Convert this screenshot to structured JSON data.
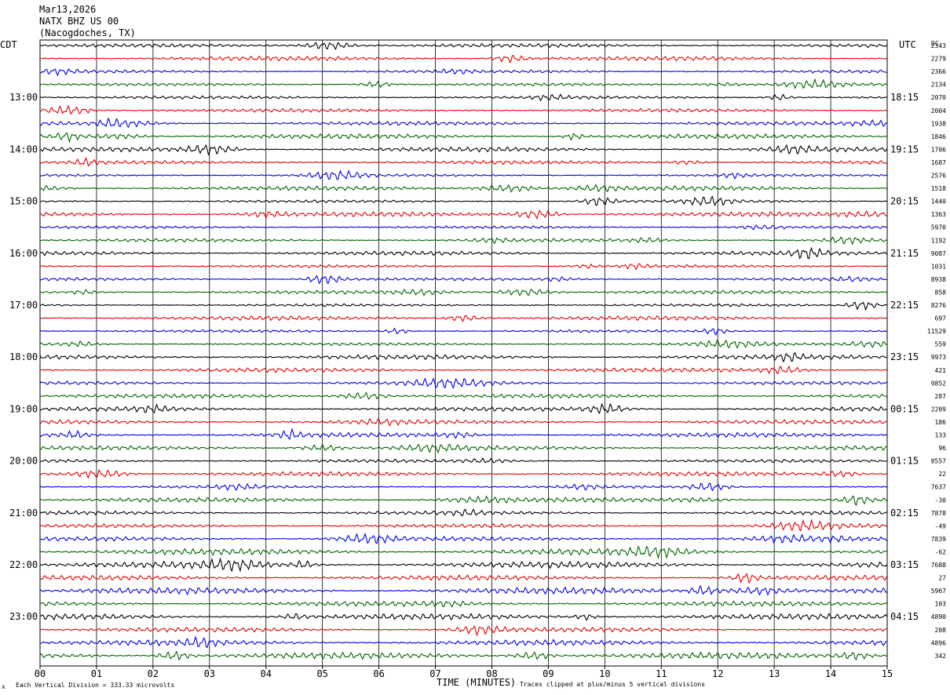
{
  "header": {
    "date": "Mar13,2026",
    "station": "NATX BHZ US 00",
    "location": "(Nacogdoches, TX)"
  },
  "left_label": "CDT",
  "right_label": "UTC",
  "dc_label": "DC",
  "footer": {
    "scale_note": "Each Vertical Division =  333.33 microvolts",
    "clip_note": "Traces clipped at plus/minus 5 vertical divisions",
    "mark": "x"
  },
  "colors": {
    "palette": [
      "#000000",
      "#e60000",
      "#0000e6",
      "#006400"
    ],
    "grid": "#000000"
  },
  "chart_data": {
    "type": "line",
    "title": "Mar13,2026 NATX BHZ US 00 (Nacogdoches, TX)",
    "xlabel": "TIME (MINUTES)",
    "ylabel": "",
    "x_ticks": [
      "00",
      "01",
      "02",
      "03",
      "04",
      "05",
      "06",
      "07",
      "08",
      "09",
      "10",
      "11",
      "12",
      "13",
      "14",
      "15"
    ],
    "xlim": [
      0,
      15
    ],
    "grid": true,
    "traces_per_hour": 4,
    "trace_count": 48,
    "left_time_labels": [
      "13:00",
      "14:00",
      "15:00",
      "16:00",
      "17:00",
      "18:00",
      "19:00",
      "20:00",
      "21:00",
      "22:00",
      "23:00"
    ],
    "right_time_labels": [
      "18:15",
      "19:15",
      "20:15",
      "21:15",
      "22:15",
      "23:15",
      "00:15",
      "01:15",
      "02:15",
      "03:15",
      "04:15"
    ],
    "label_first_trace_index": 4,
    "dc_offsets": [
      "2343",
      "2279",
      "2366",
      "2134",
      "2070",
      "2004",
      "1938",
      "1846",
      "1706",
      "1687",
      "2576",
      "1518",
      "1440",
      "1363",
      "5970",
      "1192",
      "9087",
      "1031",
      "8938",
      "858",
      "8276",
      "697",
      "11529",
      "559",
      "9973",
      "421",
      "9852",
      "287",
      "2209",
      "186",
      "133",
      "96",
      "8557",
      "22",
      "7637",
      "-30",
      "7878",
      "-49",
      "7839",
      "-62",
      "7688",
      "27",
      "5967",
      "103",
      "4890",
      "208",
      "4896",
      "342"
    ]
  }
}
